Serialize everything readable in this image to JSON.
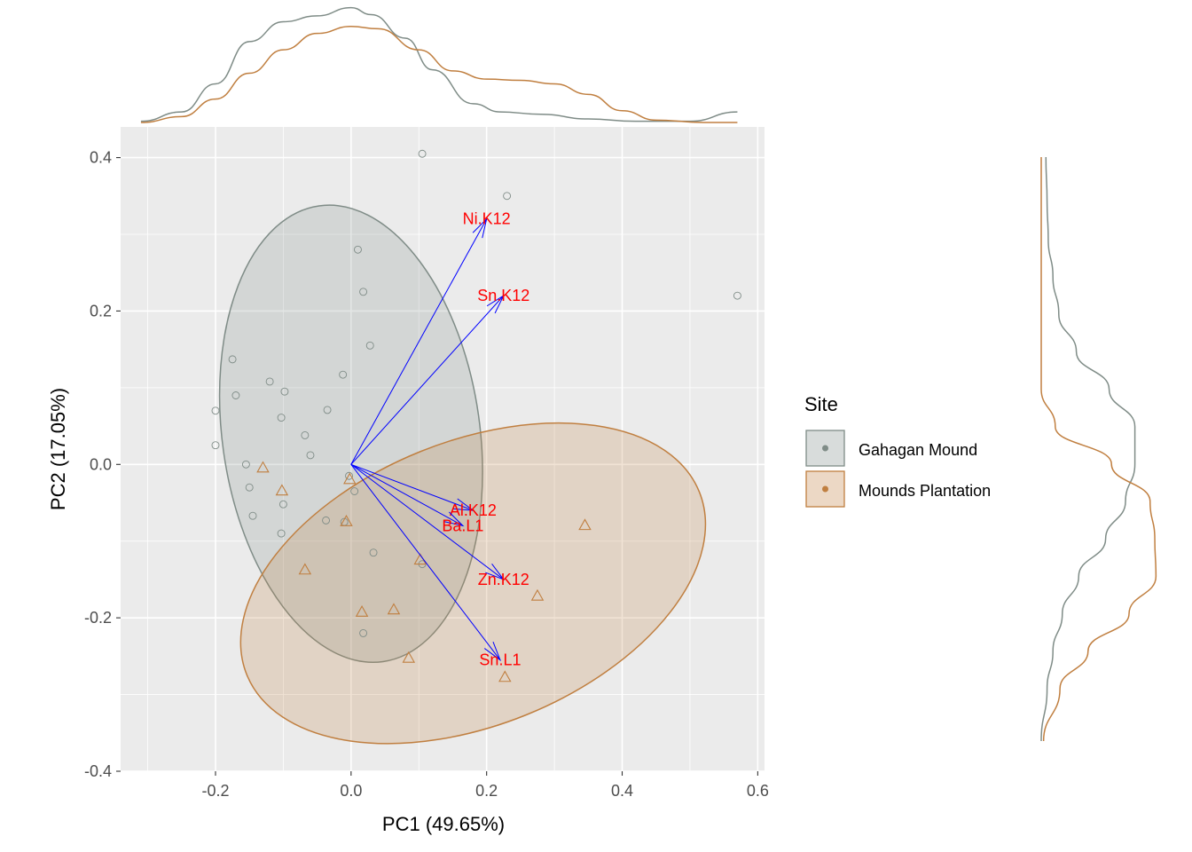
{
  "chart_data": {
    "type": "scatter",
    "xlabel": "PC1 (49.65%)",
    "ylabel": "PC2 (17.05%)",
    "xlim": [
      -0.34,
      0.61
    ],
    "ylim": [
      -0.4,
      0.44
    ],
    "x_ticks": [
      -0.2,
      0.0,
      0.2,
      0.4,
      0.6
    ],
    "x_tick_labels": [
      "-0.2",
      "0.0",
      "0.2",
      "0.4",
      "0.6"
    ],
    "y_ticks": [
      -0.4,
      -0.2,
      0.0,
      0.2,
      0.4
    ],
    "y_tick_labels": [
      "-0.4",
      "-0.2",
      "0.0",
      "0.2",
      "0.4"
    ],
    "grid": true,
    "legend": {
      "title": "Site",
      "position": "right"
    },
    "series": [
      {
        "name": "Gahagan Mound",
        "color": "#7f8c87",
        "marker": "circle",
        "points": [
          [
            0.105,
            0.405
          ],
          [
            0.23,
            0.35
          ],
          [
            0.57,
            0.22
          ],
          [
            0.01,
            0.28
          ],
          [
            0.018,
            0.225
          ],
          [
            0.028,
            0.155
          ],
          [
            -0.175,
            0.137
          ],
          [
            -0.12,
            0.108
          ],
          [
            -0.012,
            0.117
          ],
          [
            -0.098,
            0.095
          ],
          [
            -0.17,
            0.09
          ],
          [
            -0.2,
            0.07
          ],
          [
            -0.035,
            0.071
          ],
          [
            -0.103,
            0.061
          ],
          [
            -0.068,
            0.038
          ],
          [
            -0.06,
            0.012
          ],
          [
            -0.2,
            0.025
          ],
          [
            -0.155,
            0.0
          ],
          [
            -0.003,
            -0.015
          ],
          [
            -0.15,
            -0.03
          ],
          [
            0.005,
            -0.035
          ],
          [
            -0.1,
            -0.052
          ],
          [
            -0.145,
            -0.067
          ],
          [
            -0.037,
            -0.073
          ],
          [
            -0.01,
            -0.075
          ],
          [
            -0.103,
            -0.09
          ],
          [
            0.033,
            -0.115
          ],
          [
            0.105,
            -0.13
          ],
          [
            0.018,
            -0.22
          ]
        ]
      },
      {
        "name": "Mounds Plantation",
        "color": "#c07f40",
        "marker": "triangle",
        "points": [
          [
            -0.13,
            -0.005
          ],
          [
            -0.002,
            -0.02
          ],
          [
            -0.102,
            -0.035
          ],
          [
            -0.007,
            -0.075
          ],
          [
            0.345,
            -0.08
          ],
          [
            0.102,
            -0.125
          ],
          [
            -0.068,
            -0.138
          ],
          [
            0.275,
            -0.172
          ],
          [
            0.016,
            -0.193
          ],
          [
            0.063,
            -0.19
          ],
          [
            0.085,
            -0.253
          ],
          [
            0.227,
            -0.278
          ]
        ]
      }
    ],
    "loadings": [
      {
        "name": "Ni.K12",
        "x": 0.2,
        "y": 0.32
      },
      {
        "name": "Sn.K12",
        "x": 0.225,
        "y": 0.22
      },
      {
        "name": "Al.K12",
        "x": 0.18,
        "y": -0.06
      },
      {
        "name": "Ba.L1",
        "x": 0.165,
        "y": -0.08
      },
      {
        "name": "Zn.K12",
        "x": 0.225,
        "y": -0.15
      },
      {
        "name": "Sn.L1",
        "x": 0.22,
        "y": -0.255
      }
    ],
    "ellipses": [
      {
        "series": "Gahagan Mound",
        "cx": 0.0,
        "cy": 0.04,
        "rx": 0.19,
        "ry": 0.3,
        "angle_deg": -8
      },
      {
        "series": "Mounds Plantation",
        "cx": 0.18,
        "cy": -0.155,
        "rx": 0.36,
        "ry": 0.185,
        "angle_deg": -22
      }
    ],
    "marginal_x": {
      "Gahagan Mound": [
        [
          -0.31,
          0.01
        ],
        [
          -0.25,
          0.09
        ],
        [
          -0.2,
          0.33
        ],
        [
          -0.15,
          0.69
        ],
        [
          -0.1,
          0.86
        ],
        [
          -0.05,
          0.91
        ],
        [
          0.0,
          0.98
        ],
        [
          0.03,
          0.92
        ],
        [
          0.08,
          0.72
        ],
        [
          0.12,
          0.45
        ],
        [
          0.18,
          0.16
        ],
        [
          0.22,
          0.09
        ],
        [
          0.28,
          0.07
        ],
        [
          0.35,
          0.03
        ],
        [
          0.42,
          0.01
        ],
        [
          0.5,
          0.01
        ],
        [
          0.57,
          0.09
        ]
      ],
      "Mounds Plantation": [
        [
          -0.31,
          0.0
        ],
        [
          -0.25,
          0.05
        ],
        [
          -0.2,
          0.2
        ],
        [
          -0.15,
          0.42
        ],
        [
          -0.1,
          0.62
        ],
        [
          -0.05,
          0.76
        ],
        [
          0.0,
          0.82
        ],
        [
          0.04,
          0.8
        ],
        [
          0.1,
          0.62
        ],
        [
          0.15,
          0.44
        ],
        [
          0.2,
          0.37
        ],
        [
          0.25,
          0.36
        ],
        [
          0.3,
          0.33
        ],
        [
          0.35,
          0.24
        ],
        [
          0.4,
          0.1
        ],
        [
          0.45,
          0.02
        ],
        [
          0.52,
          0.0
        ],
        [
          0.57,
          0.0
        ]
      ]
    },
    "marginal_y": {
      "Gahagan Mound": [
        [
          -0.37,
          0.0
        ],
        [
          -0.3,
          0.05
        ],
        [
          -0.25,
          0.1
        ],
        [
          -0.2,
          0.18
        ],
        [
          -0.15,
          0.32
        ],
        [
          -0.1,
          0.55
        ],
        [
          -0.05,
          0.72
        ],
        [
          0.0,
          0.8
        ],
        [
          0.05,
          0.8
        ],
        [
          0.1,
          0.58
        ],
        [
          0.15,
          0.3
        ],
        [
          0.2,
          0.15
        ],
        [
          0.25,
          0.1
        ],
        [
          0.3,
          0.06
        ],
        [
          0.35,
          0.05
        ],
        [
          0.41,
          0.04
        ]
      ],
      "Mounds Plantation": [
        [
          -0.37,
          0.02
        ],
        [
          -0.3,
          0.16
        ],
        [
          -0.25,
          0.4
        ],
        [
          -0.2,
          0.75
        ],
        [
          -0.15,
          0.98
        ],
        [
          -0.1,
          0.97
        ],
        [
          -0.05,
          0.93
        ],
        [
          0.0,
          0.6
        ],
        [
          0.05,
          0.12
        ],
        [
          0.1,
          0.0
        ],
        [
          0.15,
          0.0
        ],
        [
          0.2,
          0.0
        ],
        [
          0.3,
          0.0
        ],
        [
          0.41,
          0.0
        ]
      ]
    }
  }
}
